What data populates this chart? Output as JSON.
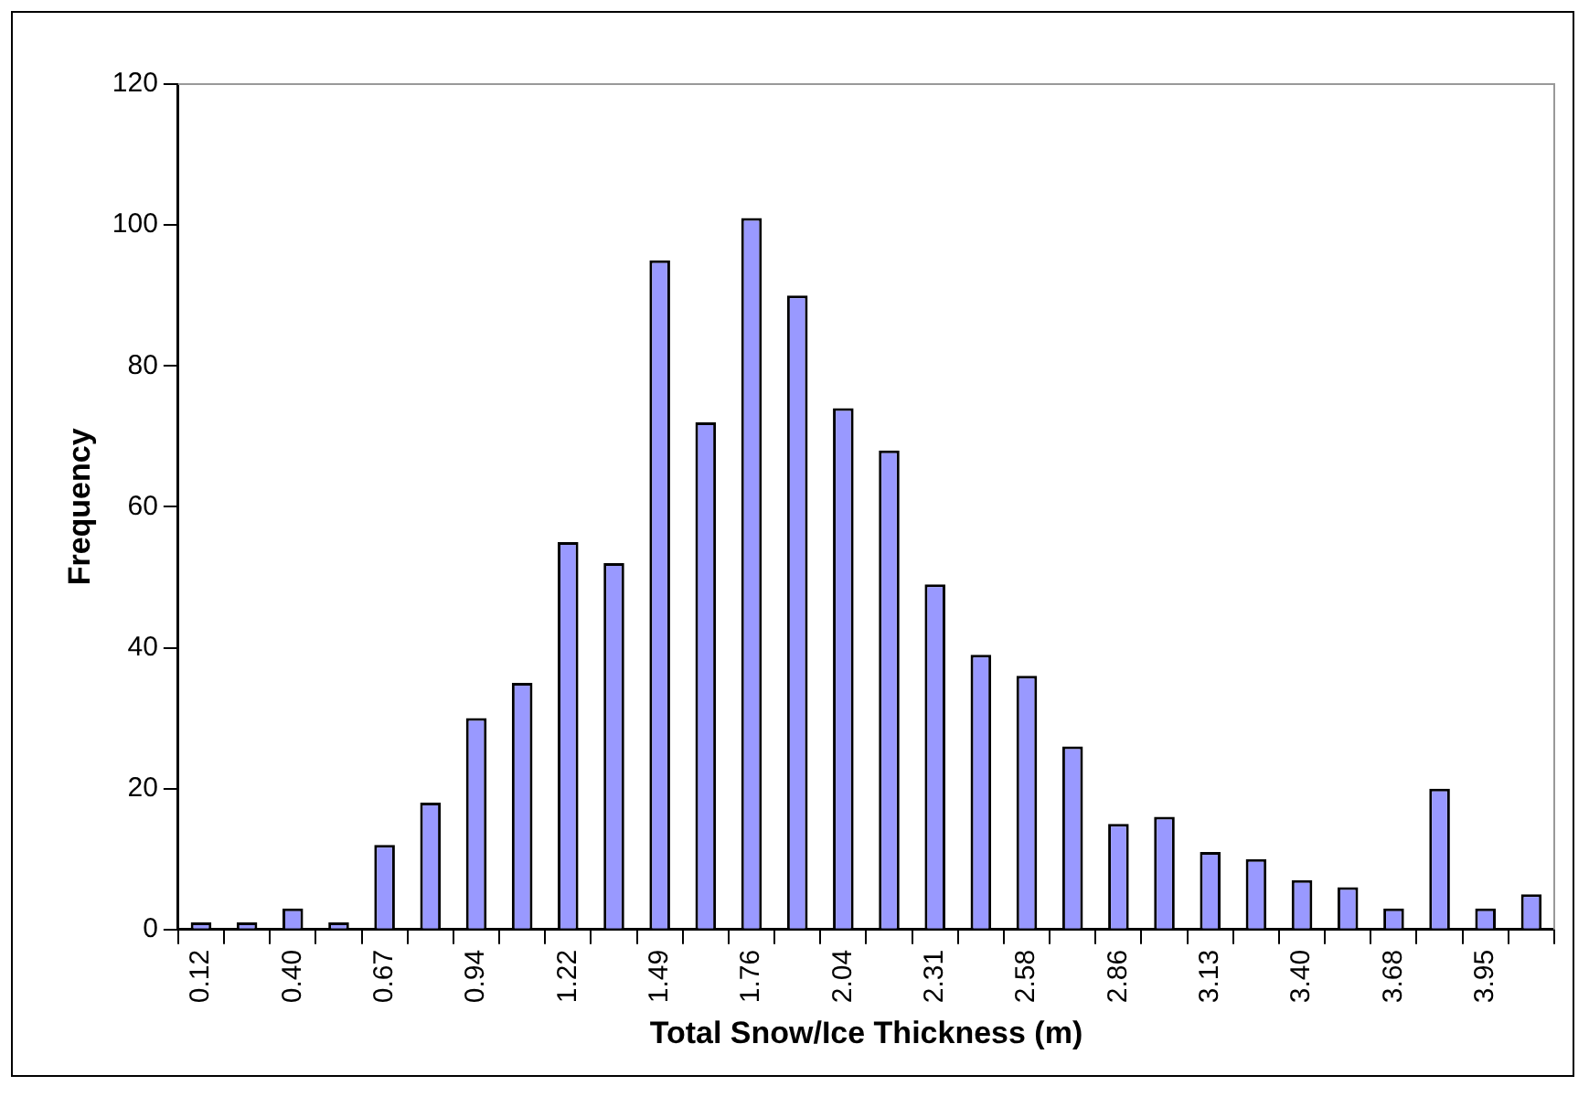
{
  "chart_data": {
    "type": "bar",
    "xlabel": "Total Snow/Ice Thickness (m)",
    "ylabel": "Frequency",
    "categories": [
      "0.12",
      null,
      "0.40",
      null,
      "0.67",
      null,
      "0.94",
      null,
      "1.22",
      null,
      "1.49",
      null,
      "1.76",
      null,
      "2.04",
      null,
      "2.31",
      null,
      "2.58",
      null,
      "2.86",
      null,
      "3.13",
      null,
      "3.40",
      null,
      "3.68",
      null,
      "3.95",
      null
    ],
    "values": [
      1,
      1,
      3,
      1,
      12,
      18,
      30,
      35,
      55,
      52,
      95,
      72,
      101,
      90,
      74,
      68,
      49,
      39,
      36,
      26,
      15,
      16,
      11,
      10,
      7,
      6,
      3,
      20,
      3,
      5
    ],
    "color": "#9999ff",
    "ylim": [
      0,
      120
    ],
    "yticks": [
      0,
      20,
      40,
      60,
      80,
      100,
      120
    ]
  }
}
